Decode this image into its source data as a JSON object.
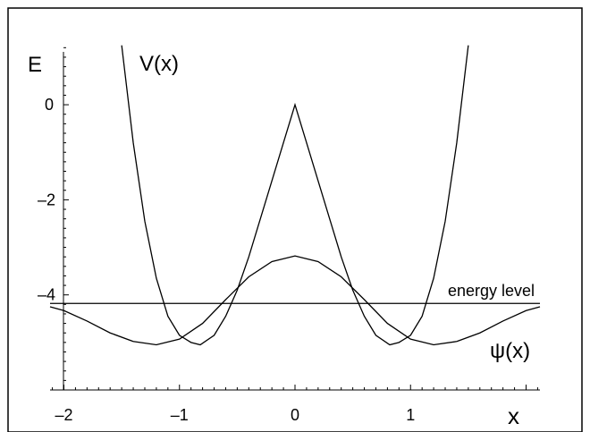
{
  "chart_data": {
    "type": "line",
    "xlabel": "x",
    "ylabel": "E",
    "xlim": [
      -2.12,
      2.12
    ],
    "ylim": [
      -6.0,
      1.3
    ],
    "x_ticks": [
      {
        "value": -2,
        "label": "–2"
      },
      {
        "value": -1,
        "label": "–1"
      },
      {
        "value": 0,
        "label": "0"
      },
      {
        "value": 1,
        "label": "1"
      }
    ],
    "y_ticks": [
      {
        "value": 0,
        "label": "0"
      },
      {
        "value": -2,
        "label": "–2"
      },
      {
        "value": -4,
        "label": "–4"
      }
    ],
    "series": [
      {
        "name": "V(x)",
        "x": [
          -1.5,
          -1.4,
          -1.3,
          -1.2,
          -1.1,
          -1.0,
          -0.9,
          -0.82,
          -0.7,
          -0.6,
          -0.5,
          -0.4,
          -0.3,
          -0.2,
          -0.1,
          0.0,
          0.1,
          0.2,
          0.3,
          0.4,
          0.5,
          0.6,
          0.7,
          0.82,
          0.9,
          1.0,
          1.1,
          1.2,
          1.3,
          1.4,
          1.5
        ],
        "y": [
          1.25,
          -0.8,
          -2.45,
          -3.65,
          -4.45,
          -4.85,
          -5.0,
          -5.05,
          -4.85,
          -4.45,
          -3.9,
          -3.2,
          -2.4,
          -1.6,
          -0.8,
          0.0,
          -0.8,
          -1.6,
          -2.4,
          -3.2,
          -3.9,
          -4.45,
          -4.85,
          -5.05,
          -5.0,
          -4.85,
          -4.45,
          -3.65,
          -2.45,
          -0.8,
          1.25
        ]
      },
      {
        "name": "ψ(x)",
        "x": [
          -2.12,
          -2.0,
          -1.8,
          -1.6,
          -1.4,
          -1.2,
          -1.0,
          -0.8,
          -0.6,
          -0.4,
          -0.2,
          0.0,
          0.2,
          0.4,
          0.6,
          0.8,
          1.0,
          1.2,
          1.4,
          1.6,
          1.8,
          2.0,
          2.12
        ],
        "y": [
          -4.25,
          -4.33,
          -4.55,
          -4.8,
          -4.98,
          -5.05,
          -4.93,
          -4.6,
          -4.1,
          -3.62,
          -3.3,
          -3.18,
          -3.3,
          -3.62,
          -4.1,
          -4.6,
          -4.93,
          -5.05,
          -4.98,
          -4.8,
          -4.55,
          -4.33,
          -4.25
        ]
      },
      {
        "name": "energy level",
        "x": [
          -2.12,
          2.12
        ],
        "y": [
          -4.18,
          -4.18
        ]
      }
    ]
  }
}
